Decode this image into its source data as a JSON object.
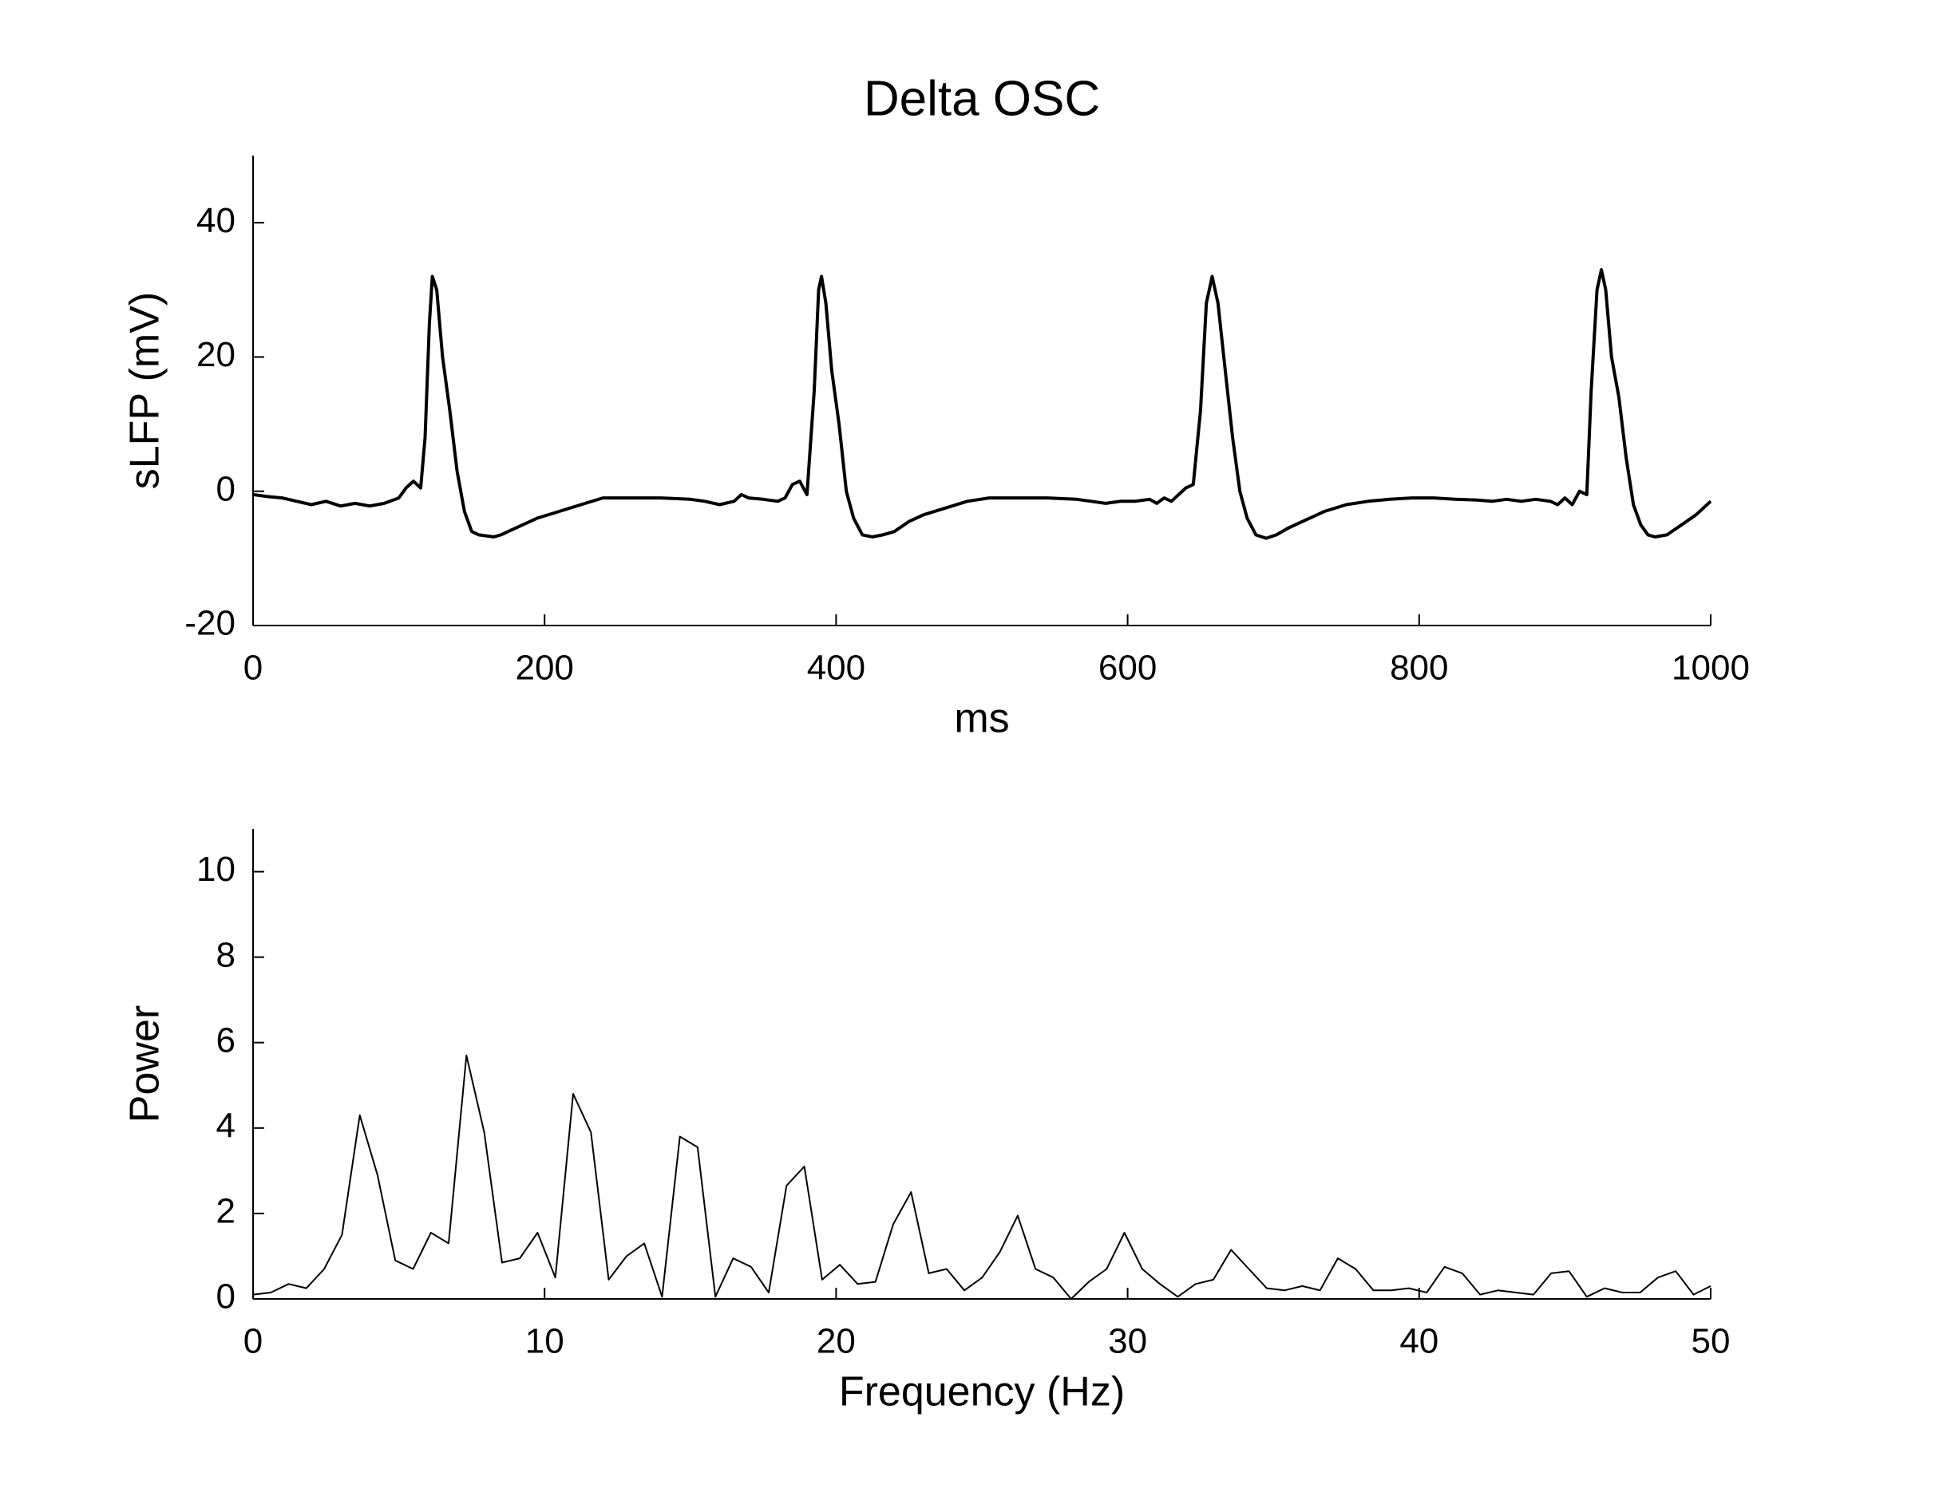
{
  "chart_data": [
    {
      "type": "line",
      "title": "Delta OSC",
      "xlabel": "ms",
      "ylabel": "sLFP (mV)",
      "xlim": [
        0,
        1000
      ],
      "xticks": [
        0,
        200,
        400,
        600,
        800,
        1000
      ],
      "ylim": [
        -20,
        50
      ],
      "yticks": [
        -20,
        0,
        20,
        40
      ],
      "color": "#000000",
      "x": [
        0,
        10,
        20,
        30,
        40,
        50,
        60,
        70,
        80,
        90,
        100,
        105,
        110,
        115,
        118,
        121,
        123,
        126,
        130,
        135,
        140,
        145,
        150,
        155,
        165,
        170,
        175,
        185,
        195,
        210,
        225,
        240,
        260,
        280,
        300,
        310,
        320,
        330,
        335,
        340,
        350,
        360,
        365,
        370,
        375,
        380,
        385,
        388,
        390,
        393,
        397,
        402,
        407,
        412,
        418,
        425,
        432,
        440,
        450,
        460,
        475,
        490,
        505,
        525,
        545,
        565,
        575,
        585,
        595,
        605,
        615,
        620,
        625,
        630,
        640,
        645,
        650,
        654,
        658,
        662,
        667,
        672,
        677,
        682,
        688,
        695,
        702,
        710,
        720,
        735,
        750,
        765,
        780,
        795,
        810,
        825,
        840,
        850,
        860,
        870,
        880,
        890,
        895,
        900,
        905,
        910,
        915,
        918,
        922,
        925,
        928,
        932,
        937,
        942,
        947,
        952,
        957,
        962,
        970,
        980,
        990,
        1000
      ],
      "values": [
        -0.5,
        -0.8,
        -1,
        -1.5,
        -2,
        -1.5,
        -2.2,
        -1.8,
        -2.2,
        -1.8,
        -1,
        0.5,
        1.5,
        0.5,
        8,
        25,
        32,
        30,
        20,
        12,
        3,
        -3,
        -6,
        -6.5,
        -6.8,
        -6.5,
        -6,
        -5,
        -4,
        -3,
        -2,
        -1,
        -1,
        -1,
        -1.2,
        -1.5,
        -2,
        -1.5,
        -0.5,
        -1,
        -1.2,
        -1.5,
        -1,
        1,
        1.5,
        -0.5,
        15,
        30,
        32,
        28,
        18,
        10,
        0,
        -4,
        -6.5,
        -6.8,
        -6.5,
        -6,
        -4.5,
        -3.5,
        -2.5,
        -1.5,
        -1,
        -1,
        -1,
        -1.2,
        -1.5,
        -1.8,
        -1.5,
        -1.5,
        -1.2,
        -1.8,
        -1,
        -1.5,
        0.5,
        1,
        12,
        28,
        32,
        28,
        18,
        8,
        0,
        -4,
        -6.5,
        -7,
        -6.5,
        -5.5,
        -4.5,
        -3,
        -2,
        -1.5,
        -1.2,
        -1,
        -1,
        -1.2,
        -1.3,
        -1.5,
        -1.2,
        -1.5,
        -1.2,
        -1.5,
        -2,
        -1,
        -2,
        0,
        -0.5,
        15,
        30,
        33,
        30,
        20,
        14,
        5,
        -2,
        -5,
        -6.5,
        -6.8,
        -6.5,
        -5,
        -3.5,
        -1.5
      ]
    },
    {
      "type": "line",
      "xlabel": "Frequency (Hz)",
      "ylabel": "Power",
      "xlim": [
        0,
        50
      ],
      "xticks": [
        0,
        10,
        20,
        30,
        40,
        50
      ],
      "ylim": [
        0,
        11
      ],
      "yticks": [
        0,
        2,
        4,
        6,
        8,
        10
      ],
      "color": "#000000",
      "x": [
        0,
        0.61,
        1.22,
        1.83,
        2.44,
        3.05,
        3.66,
        4.27,
        4.88,
        5.49,
        6.1,
        6.71,
        7.32,
        7.93,
        8.54,
        9.15,
        9.76,
        10.37,
        10.98,
        11.59,
        12.2,
        12.81,
        13.42,
        14.03,
        14.64,
        15.25,
        15.86,
        16.47,
        17.08,
        17.69,
        18.3,
        18.91,
        19.52,
        20.13,
        20.74,
        21.35,
        21.96,
        22.57,
        23.18,
        23.79,
        24.4,
        25.01,
        25.62,
        26.23,
        26.84,
        27.45,
        28.06,
        28.67,
        29.28,
        29.89,
        30.5,
        31.11,
        31.72,
        32.33,
        32.94,
        33.55,
        34.16,
        34.77,
        35.38,
        35.99,
        36.6,
        37.21,
        37.82,
        38.43,
        39.04,
        39.65,
        40.26,
        40.87,
        41.48,
        42.09,
        42.7,
        43.31,
        43.92,
        44.53,
        45.14,
        45.75,
        46.36,
        46.97,
        47.58,
        48.19,
        48.8,
        49.41,
        50
      ],
      "values": [
        0.1,
        0.15,
        0.35,
        0.25,
        0.7,
        1.5,
        4.3,
        2.9,
        0.9,
        0.7,
        1.55,
        1.3,
        5.7,
        3.9,
        0.85,
        0.95,
        1.55,
        0.5,
        4.8,
        3.9,
        0.45,
        1.0,
        1.3,
        0.05,
        3.8,
        3.55,
        0.05,
        0.95,
        0.75,
        0.15,
        2.65,
        3.1,
        0.45,
        0.8,
        0.35,
        0.4,
        1.75,
        2.5,
        0.6,
        0.7,
        0.2,
        0.5,
        1.1,
        1.95,
        0.7,
        0.5,
        0.0,
        0.4,
        0.7,
        1.55,
        0.7,
        0.35,
        0.05,
        0.35,
        0.45,
        1.15,
        0.7,
        0.25,
        0.2,
        0.3,
        0.2,
        0.95,
        0.7,
        0.2,
        0.2,
        0.25,
        0.15,
        0.75,
        0.6,
        0.1,
        0.2,
        0.15,
        0.1,
        0.6,
        0.65,
        0.05,
        0.25,
        0.15,
        0.15,
        0.5,
        0.65,
        0.1,
        0.3
      ]
    }
  ]
}
